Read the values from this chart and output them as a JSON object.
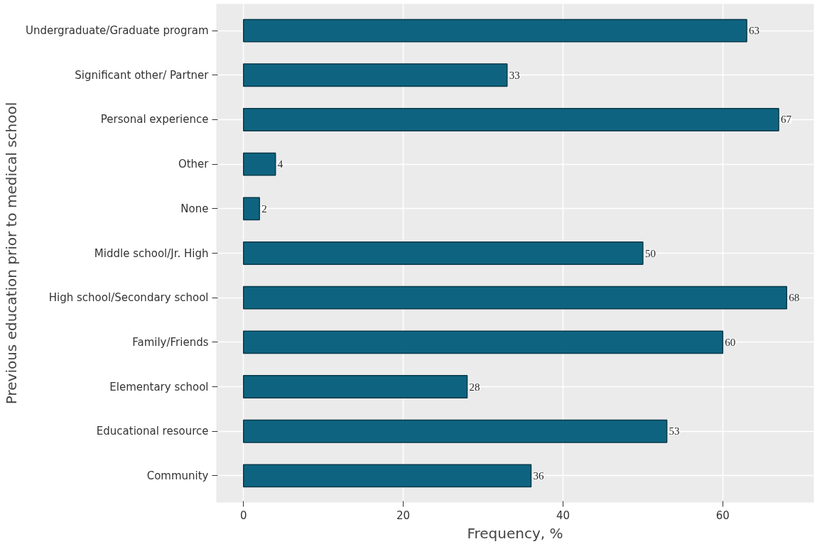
{
  "chart_data": {
    "type": "bar",
    "orientation": "horizontal",
    "ylabel": "Previous education prior to medical school",
    "xlabel": "Frequency, %",
    "categories": [
      "Undergraduate/Graduate program",
      "Significant other/ Partner",
      "Personal experience",
      "Other",
      "None",
      "Middle school/Jr. High",
      "High school/Secondary school",
      "Family/Friends",
      "Elementary school",
      "Educational resource",
      "Community"
    ],
    "values": [
      63,
      33,
      67,
      4,
      2,
      50,
      68,
      60,
      28,
      53,
      36
    ],
    "color": "#0e6480",
    "xlim": [
      -3.4,
      71.4
    ],
    "xticks": [
      0,
      20,
      40,
      60
    ],
    "grid": true,
    "data_labels": true
  }
}
